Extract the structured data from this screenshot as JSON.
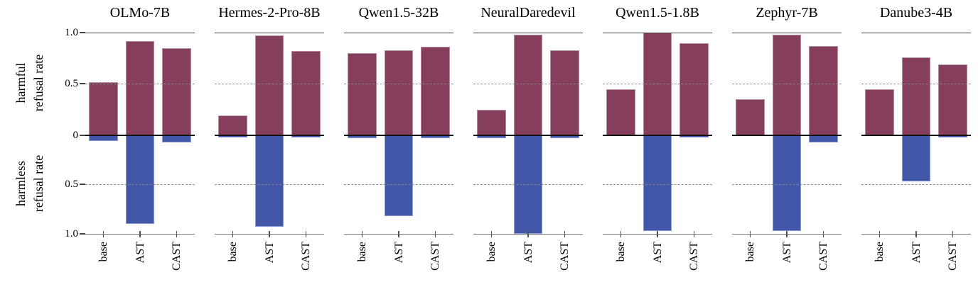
{
  "figure": {
    "ylabel_top_line1": "harmful",
    "ylabel_top_line2": "refusal rate",
    "ylabel_bottom_line1": "harmless",
    "ylabel_bottom_line2": "refusal rate",
    "y_ticks": [
      "1.0",
      "0.5",
      "0",
      "0.5",
      "1.0"
    ]
  },
  "colors": {
    "harmful_bar": "#853f5c",
    "harmful_bar_edge": "#b78ba0",
    "harmless_bar": "#4156a6",
    "harmless_bar_edge": "#8d9cd1",
    "zero_line": "#111111",
    "grid_dash": "#8a8a8a",
    "spine_top": "#3f3f3f",
    "spine_bottom": "#7a7a7a"
  },
  "chart_data": {
    "type": "bar",
    "orientation": "diverging-vertical",
    "categories": [
      "base",
      "AST",
      "CAST"
    ],
    "axes": {
      "up_label": "harmful refusal rate",
      "down_label": "harmless refusal rate",
      "up_range": [
        0,
        1.0
      ],
      "down_range": [
        0,
        1.0
      ],
      "tick_values": [
        1.0,
        0.5,
        0,
        0.5,
        1.0
      ],
      "dashed_gridlines_at": [
        0.5
      ],
      "legend": "none"
    },
    "panels": [
      {
        "title": "OLMo-7B",
        "harmful": [
          0.52,
          0.92,
          0.85
        ],
        "harmless": [
          0.06,
          0.9,
          0.07
        ]
      },
      {
        "title": "Hermes-2-Pro-8B",
        "harmful": [
          0.19,
          0.97,
          0.82
        ],
        "harmless": [
          0.02,
          0.93,
          0.02
        ]
      },
      {
        "title": "Qwen1.5-32B",
        "harmful": [
          0.8,
          0.83,
          0.86
        ],
        "harmless": [
          0.03,
          0.82,
          0.03
        ]
      },
      {
        "title": "NeuralDaredevil",
        "harmful": [
          0.25,
          0.98,
          0.83
        ],
        "harmless": [
          0.03,
          1.0,
          0.03
        ]
      },
      {
        "title": "Qwen1.5-1.8B",
        "harmful": [
          0.45,
          1.0,
          0.9
        ],
        "harmless": [
          0.0,
          0.97,
          0.02
        ]
      },
      {
        "title": "Zephyr-7B",
        "harmful": [
          0.35,
          0.98,
          0.87
        ],
        "harmless": [
          0.0,
          0.97,
          0.07
        ]
      },
      {
        "title": "Danube3-4B",
        "harmful": [
          0.45,
          0.76,
          0.69
        ],
        "harmless": [
          0.0,
          0.47,
          0.02
        ]
      }
    ]
  }
}
